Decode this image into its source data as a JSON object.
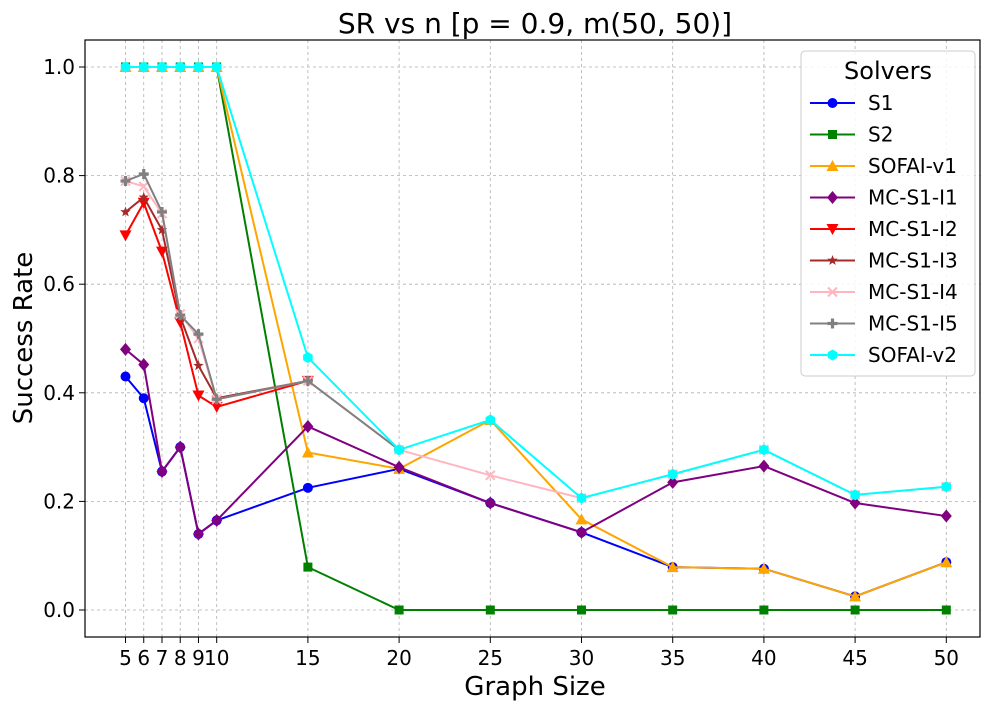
{
  "chart_data": {
    "type": "line",
    "title": "SR vs n [p = 0.9, m(50, 50)]",
    "xlabel": "Graph Size",
    "ylabel": "Success Rate",
    "x": [
      5,
      6,
      7,
      8,
      9,
      10,
      15,
      20,
      25,
      30,
      35,
      40,
      45,
      50
    ],
    "xticks": [
      "5",
      "6",
      "7",
      "8",
      "9",
      "10",
      "15",
      "20",
      "25",
      "30",
      "35",
      "40",
      "45",
      "50"
    ],
    "yticks": [
      "0.0",
      "0.2",
      "0.4",
      "0.6",
      "0.8",
      "1.0"
    ],
    "ylim": [
      -0.05,
      1.05
    ],
    "grid": true,
    "legend": {
      "title": "Solvers",
      "position": "top-right"
    },
    "series": [
      {
        "name": "S1",
        "color": "#0000ff",
        "marker": "circle",
        "values": [
          0.43,
          0.39,
          0.255,
          0.3,
          0.14,
          0.165,
          0.225,
          0.26,
          0.197,
          0.143,
          0.079,
          0.076,
          0.025,
          0.088
        ]
      },
      {
        "name": "S2",
        "color": "#008000",
        "marker": "square",
        "values": [
          1.0,
          1.0,
          1.0,
          1.0,
          1.0,
          1.0,
          0.079,
          0.0,
          0.0,
          0.0,
          0.0,
          0.0,
          0.0,
          0.0
        ]
      },
      {
        "name": "SOFAI-v1",
        "color": "#ffa500",
        "marker": "triangle-up",
        "values": [
          1.0,
          1.0,
          1.0,
          1.0,
          1.0,
          1.0,
          0.29,
          0.26,
          0.35,
          0.167,
          0.079,
          0.076,
          0.025,
          0.088
        ]
      },
      {
        "name": "MC-S1-I1",
        "color": "#800080",
        "marker": "diamond",
        "values": [
          0.48,
          0.452,
          0.255,
          0.3,
          0.14,
          0.165,
          0.338,
          0.263,
          0.197,
          0.143,
          0.235,
          0.265,
          0.197,
          0.173
        ]
      },
      {
        "name": "MC-S1-I2",
        "color": "#ff0000",
        "marker": "triangle-down",
        "values": [
          0.69,
          0.75,
          0.66,
          0.53,
          0.395,
          0.374,
          0.422,
          null,
          null,
          null,
          null,
          null,
          null,
          null
        ]
      },
      {
        "name": "MC-S1-I3",
        "color": "#a52a2a",
        "marker": "star",
        "values": [
          0.733,
          0.76,
          0.7,
          0.54,
          0.45,
          0.39,
          0.422,
          null,
          null,
          null,
          null,
          null,
          null,
          null
        ]
      },
      {
        "name": "MC-S1-I4",
        "color": "#ffb6c1",
        "marker": "x",
        "values": [
          0.79,
          0.78,
          0.73,
          0.545,
          0.5,
          0.388,
          0.422,
          0.295,
          0.248,
          0.206,
          0.25,
          0.295,
          0.212,
          0.227
        ]
      },
      {
        "name": "MC-S1-I5",
        "color": "#808080",
        "marker": "plus",
        "values": [
          0.79,
          0.803,
          0.733,
          0.543,
          0.508,
          0.388,
          0.422,
          0.295,
          null,
          null,
          null,
          null,
          null,
          null
        ]
      },
      {
        "name": "SOFAI-v2",
        "color": "#00ffff",
        "marker": "hexagon",
        "values": [
          1.0,
          1.0,
          1.0,
          1.0,
          1.0,
          1.0,
          0.465,
          0.295,
          0.35,
          0.206,
          0.25,
          0.295,
          0.212,
          0.227
        ]
      }
    ]
  }
}
